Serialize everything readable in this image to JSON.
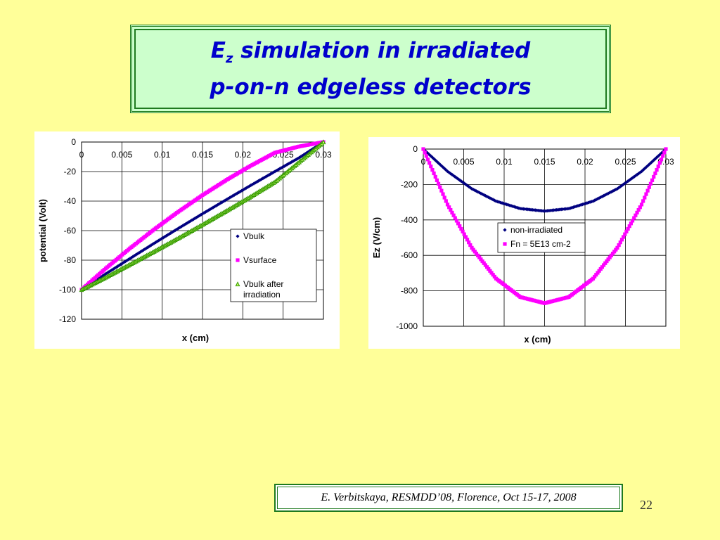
{
  "slide": {
    "title_main": "E",
    "title_sub": "z",
    "title_line1_rest": " simulation in irradiated",
    "title_line2": "p-on-n edgeless detectors",
    "footer": "E. Verbitskaya, RESMDD’08, Florence, Oct 15-17, 2008",
    "page_number": "22"
  },
  "chart_data": [
    {
      "type": "scatter",
      "xlabel": "x (cm)",
      "ylabel": "potential (Volt)",
      "xlim": [
        0,
        0.03
      ],
      "ylim": [
        -120,
        0
      ],
      "xticks": [
        0,
        0.005,
        0.01,
        0.015,
        0.02,
        0.025,
        0.03
      ],
      "xtick_labels": [
        "0",
        "0.005",
        "0.01",
        "0.015",
        "0.02",
        "0.025",
        "0.03"
      ],
      "yticks": [
        0,
        -20,
        -40,
        -60,
        -80,
        -100,
        -120
      ],
      "ytick_labels": [
        "0",
        "-20",
        "-40",
        "-60",
        "-80",
        "-100",
        "-120"
      ],
      "grid": true,
      "legend_position": "right",
      "series": [
        {
          "name": "Vbulk",
          "marker": "diamond",
          "color": "#000080",
          "x": [
            0,
            0.003,
            0.006,
            0.009,
            0.012,
            0.015,
            0.018,
            0.021,
            0.024,
            0.027,
            0.03
          ],
          "y": [
            -100,
            -89.3,
            -78.9,
            -68.6,
            -58.5,
            -48.6,
            -38.9,
            -29.3,
            -19.9,
            -10.6,
            0
          ]
        },
        {
          "name": "Vsurface",
          "marker": "square",
          "color": "#ff00ff",
          "x": [
            0,
            0.003,
            0.006,
            0.009,
            0.012,
            0.015,
            0.018,
            0.021,
            0.024,
            0.027,
            0.03
          ],
          "y": [
            -100,
            -85.6,
            -72.0,
            -59.2,
            -47.2,
            -36.0,
            -25.6,
            -16.0,
            -7.2,
            -3.0,
            0
          ]
        },
        {
          "name": "Vbulk after irradiation",
          "marker": "triangle",
          "color": "#339900",
          "x": [
            0,
            0.003,
            0.006,
            0.009,
            0.012,
            0.015,
            0.018,
            0.021,
            0.024,
            0.027,
            0.03
          ],
          "y": [
            -100,
            -91.6,
            -82.9,
            -74.1,
            -65.1,
            -55.9,
            -46.5,
            -36.9,
            -26.9,
            -13.5,
            0
          ]
        }
      ]
    },
    {
      "type": "scatter",
      "xlabel": "x (cm)",
      "ylabel": "Ez (V/cm)",
      "xlim": [
        0,
        0.03
      ],
      "ylim": [
        -1000,
        0
      ],
      "xticks": [
        0,
        0.005,
        0.01,
        0.015,
        0.02,
        0.025,
        0.03
      ],
      "xtick_labels": [
        "0",
        "0.005",
        "0.01",
        "0.015",
        "0.02",
        "0.025",
        "0.03"
      ],
      "yticks": [
        0,
        -200,
        -400,
        -600,
        -800,
        -1000
      ],
      "ytick_labels": [
        "0",
        "-200",
        "-400",
        "-600",
        "-800",
        "-1000"
      ],
      "grid": true,
      "legend_position": "right",
      "series": [
        {
          "name": "non-irradiated",
          "marker": "diamond",
          "color": "#000080",
          "x": [
            0,
            0.003,
            0.006,
            0.009,
            0.012,
            0.015,
            0.018,
            0.021,
            0.024,
            0.027,
            0.03
          ],
          "y": [
            0,
            -126,
            -224,
            -294,
            -336,
            -350,
            -336,
            -294,
            -224,
            -126,
            0
          ]
        },
        {
          "name": "Fn = 5E13 cm-2",
          "marker": "square",
          "color": "#ff00ff",
          "x": [
            0,
            0.003,
            0.006,
            0.009,
            0.012,
            0.015,
            0.018,
            0.021,
            0.024,
            0.027,
            0.03
          ],
          "y": [
            0,
            -313,
            -557,
            -731,
            -835,
            -870,
            -835,
            -731,
            -557,
            -313,
            0
          ]
        }
      ]
    }
  ]
}
